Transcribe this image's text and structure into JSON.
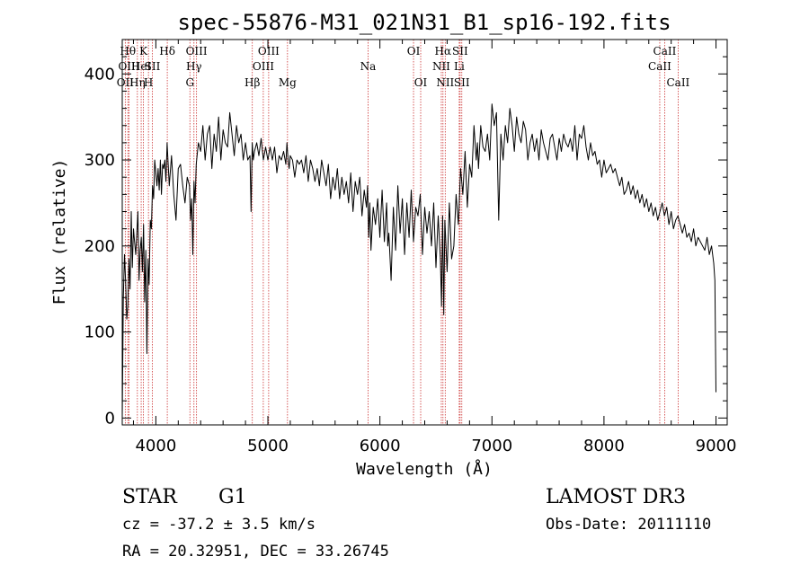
{
  "chart_data": {
    "type": "line",
    "title": "spec-55876-M31_021N31_B1_sp16-192.fits",
    "xlabel": "Wavelength (Å)",
    "ylabel": "Flux (relative)",
    "xlim": [
      3700,
      9100
    ],
    "ylim": [
      -8,
      440
    ],
    "xticks": [
      4000,
      5000,
      6000,
      7000,
      8000,
      9000
    ],
    "yticks": [
      0,
      100,
      200,
      300,
      400
    ],
    "grid": false,
    "series": [
      {
        "color": "#000000",
        "x": [
          3700,
          3710,
          3720,
          3730,
          3740,
          3750,
          3760,
          3770,
          3780,
          3790,
          3800,
          3810,
          3820,
          3830,
          3840,
          3850,
          3860,
          3870,
          3880,
          3890,
          3900,
          3910,
          3920,
          3930,
          3940,
          3950,
          3960,
          3970,
          3980,
          3990,
          4000,
          4010,
          4020,
          4030,
          4040,
          4050,
          4060,
          4070,
          4080,
          4090,
          4100,
          4120,
          4140,
          4160,
          4180,
          4200,
          4220,
          4240,
          4260,
          4280,
          4300,
          4310,
          4320,
          4330,
          4340,
          4350,
          4360,
          4380,
          4400,
          4420,
          4440,
          4460,
          4480,
          4500,
          4520,
          4540,
          4560,
          4580,
          4600,
          4620,
          4640,
          4660,
          4680,
          4700,
          4720,
          4740,
          4760,
          4780,
          4800,
          4820,
          4840,
          4850,
          4860,
          4870,
          4880,
          4900,
          4920,
          4940,
          4960,
          4980,
          5000,
          5020,
          5040,
          5060,
          5080,
          5100,
          5120,
          5140,
          5160,
          5170,
          5180,
          5190,
          5200,
          5220,
          5240,
          5260,
          5280,
          5300,
          5320,
          5340,
          5360,
          5380,
          5400,
          5420,
          5440,
          5460,
          5480,
          5500,
          5520,
          5540,
          5560,
          5580,
          5600,
          5620,
          5640,
          5660,
          5680,
          5700,
          5720,
          5740,
          5760,
          5780,
          5800,
          5820,
          5840,
          5860,
          5880,
          5890,
          5900,
          5910,
          5920,
          5940,
          5960,
          5980,
          6000,
          6020,
          6040,
          6060,
          6070,
          6080,
          6100,
          6120,
          6140,
          6160,
          6180,
          6200,
          6220,
          6240,
          6260,
          6280,
          6300,
          6320,
          6340,
          6360,
          6380,
          6400,
          6420,
          6440,
          6460,
          6480,
          6500,
          6520,
          6540,
          6550,
          6560,
          6570,
          6580,
          6600,
          6620,
          6640,
          6660,
          6680,
          6700,
          6720,
          6740,
          6760,
          6780,
          6800,
          6820,
          6840,
          6860,
          6870,
          6880,
          6900,
          6920,
          6940,
          6960,
          6980,
          7000,
          7020,
          7040,
          7060,
          7080,
          7100,
          7120,
          7140,
          7160,
          7180,
          7200,
          7220,
          7240,
          7260,
          7280,
          7300,
          7320,
          7340,
          7360,
          7380,
          7400,
          7420,
          7440,
          7460,
          7480,
          7500,
          7520,
          7540,
          7560,
          7580,
          7600,
          7620,
          7640,
          7660,
          7680,
          7700,
          7720,
          7740,
          7760,
          7780,
          7800,
          7820,
          7840,
          7860,
          7880,
          7900,
          7920,
          7940,
          7960,
          7980,
          8000,
          8020,
          8040,
          8060,
          8080,
          8100,
          8120,
          8140,
          8160,
          8180,
          8200,
          8220,
          8240,
          8260,
          8280,
          8300,
          8320,
          8340,
          8360,
          8380,
          8400,
          8420,
          8440,
          8460,
          8480,
          8500,
          8520,
          8540,
          8560,
          8580,
          8600,
          8620,
          8640,
          8660,
          8680,
          8700,
          8720,
          8740,
          8760,
          8780,
          8800,
          8820,
          8840,
          8860,
          8880,
          8900,
          8920,
          8940,
          8960,
          8980,
          8990,
          9000
        ],
        "y": [
          0,
          140,
          190,
          160,
          115,
          130,
          185,
          150,
          240,
          175,
          220,
          205,
          190,
          215,
          240,
          160,
          195,
          210,
          170,
          225,
          135,
          195,
          75,
          185,
          155,
          230,
          220,
          270,
          255,
          300,
          285,
          270,
          290,
          265,
          300,
          260,
          295,
          290,
          300,
          275,
          320,
          270,
          305,
          260,
          230,
          290,
          295,
          270,
          250,
          280,
          270,
          230,
          255,
          190,
          275,
          250,
          295,
          320,
          310,
          340,
          300,
          330,
          340,
          290,
          330,
          310,
          350,
          300,
          335,
          320,
          315,
          355,
          330,
          305,
          340,
          320,
          330,
          300,
          320,
          300,
          305,
          240,
          320,
          300,
          310,
          320,
          305,
          325,
          300,
          315,
          300,
          315,
          300,
          315,
          285,
          305,
          300,
          310,
          295,
          320,
          300,
          290,
          305,
          300,
          280,
          300,
          295,
          300,
          285,
          305,
          275,
          300,
          290,
          275,
          290,
          270,
          300,
          285,
          270,
          295,
          255,
          280,
          265,
          290,
          255,
          280,
          260,
          275,
          250,
          285,
          240,
          275,
          260,
          280,
          235,
          265,
          245,
          270,
          210,
          250,
          195,
          245,
          225,
          255,
          210,
          265,
          205,
          250,
          200,
          215,
          160,
          245,
          195,
          270,
          215,
          255,
          190,
          250,
          210,
          265,
          205,
          245,
          235,
          260,
          190,
          245,
          215,
          240,
          200,
          250,
          175,
          235,
          185,
          130,
          235,
          120,
          230,
          170,
          250,
          185,
          200,
          260,
          225,
          290,
          260,
          310,
          245,
          295,
          280,
          340,
          300,
          320,
          290,
          340,
          315,
          310,
          330,
          300,
          365,
          340,
          355,
          230,
          330,
          300,
          340,
          320,
          360,
          340,
          310,
          350,
          330,
          320,
          345,
          335,
          300,
          320,
          330,
          310,
          325,
          300,
          335,
          320,
          310,
          300,
          325,
          330,
          315,
          300,
          325,
          310,
          330,
          320,
          315,
          325,
          310,
          340,
          300,
          330,
          325,
          340,
          315,
          300,
          320,
          305,
          310,
          295,
          300,
          280,
          300,
          285,
          290,
          295,
          285,
          290,
          280,
          270,
          280,
          260,
          265,
          275,
          260,
          270,
          255,
          265,
          250,
          260,
          245,
          255,
          240,
          250,
          235,
          245,
          230,
          240,
          250,
          235,
          245,
          225,
          240,
          220,
          230,
          235,
          225,
          215,
          225,
          210,
          215,
          205,
          220,
          200,
          210,
          205,
          200,
          195,
          210,
          190,
          200,
          180,
          160,
          30
        ]
      }
    ],
    "spectral_lines": [
      {
        "wavelength": 3727,
        "row": 3,
        "label": "OII"
      },
      {
        "wavelength": 3750,
        "row": 1,
        "label": "Hθ"
      },
      {
        "wavelength": 3760,
        "row": 2,
        "label": "OIII"
      },
      {
        "wavelength": 3835,
        "row": 3,
        "label": "Hη"
      },
      {
        "wavelength": 3869,
        "row": 2,
        "label": "HeI"
      },
      {
        "wavelength": 3889,
        "row": 1,
        "label": "K"
      },
      {
        "wavelength": 3934,
        "row": 3,
        "label": "H"
      },
      {
        "wavelength": 3969,
        "row": 2,
        "label": "SII"
      },
      {
        "wavelength": 4102,
        "row": 1,
        "label": "Hδ"
      },
      {
        "wavelength": 4304,
        "row": 3,
        "label": "G"
      },
      {
        "wavelength": 4340,
        "row": 2,
        "label": "Hγ"
      },
      {
        "wavelength": 4363,
        "row": 1,
        "label": "OIII"
      },
      {
        "wavelength": 4861,
        "row": 3,
        "label": "Hβ"
      },
      {
        "wavelength": 4959,
        "row": 2,
        "label": "OIII"
      },
      {
        "wavelength": 5007,
        "row": 1,
        "label": "OIII"
      },
      {
        "wavelength": 5175,
        "row": 3,
        "label": "Mg"
      },
      {
        "wavelength": 5894,
        "row": 2,
        "label": "Na"
      },
      {
        "wavelength": 6300,
        "row": 1,
        "label": "OI"
      },
      {
        "wavelength": 6364,
        "row": 3,
        "label": "OI"
      },
      {
        "wavelength": 6548,
        "row": 2,
        "label": "NII"
      },
      {
        "wavelength": 6563,
        "row": 1,
        "label": "Hα"
      },
      {
        "wavelength": 6583,
        "row": 3,
        "label": "NII"
      },
      {
        "wavelength": 6708,
        "row": 2,
        "label": "Li"
      },
      {
        "wavelength": 6716,
        "row": 1,
        "label": "SII"
      },
      {
        "wavelength": 6731,
        "row": 3,
        "label": "SII"
      },
      {
        "wavelength": 8498,
        "row": 2,
        "label": "CaII"
      },
      {
        "wavelength": 8542,
        "row": 1,
        "label": "CaII"
      },
      {
        "wavelength": 8662,
        "row": 3,
        "label": "CaII"
      }
    ],
    "line_color": "#cc3333"
  },
  "info": {
    "object_class": "STAR",
    "subclass": "G1",
    "survey": "LAMOST DR3",
    "cz": "cz = -37.2 ± 3.5 km/s",
    "obs_date": "Obs-Date: 20111110",
    "coords": "RA =  20.32951, DEC =  33.26745"
  }
}
